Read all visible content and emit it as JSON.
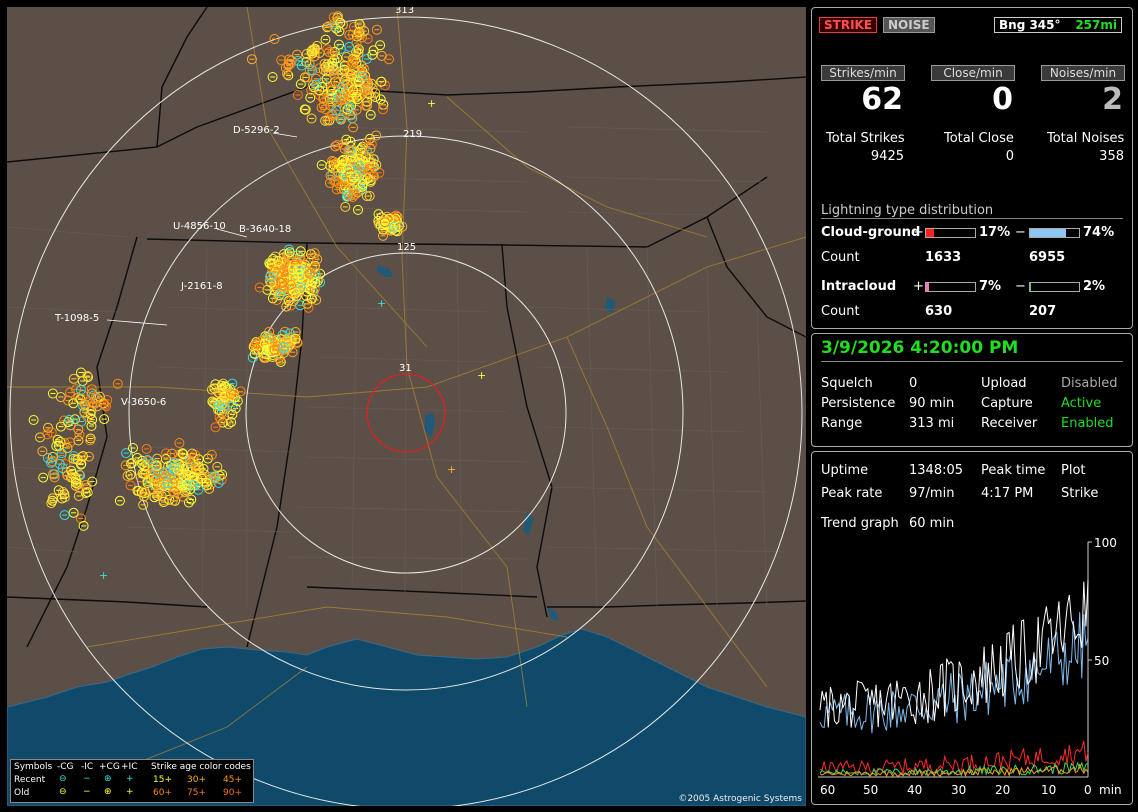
{
  "status": {
    "strike": "STRIKE",
    "noise": "NOISE",
    "bearing": "Bng 345°",
    "distance": "257mi"
  },
  "rates": {
    "strikes_hdr": "Strikes/min",
    "close_hdr": "Close/min",
    "noises_hdr": "Noises/min",
    "strikes": "62",
    "close": "0",
    "noises": "2",
    "total_strikes_lbl": "Total Strikes",
    "total_close_lbl": "Total Close",
    "total_noises_lbl": "Total Noises",
    "total_strikes": "9425",
    "total_close": "0",
    "total_noises": "358"
  },
  "dist": {
    "title": "Lightning type distribution",
    "cg_label": "Cloud-ground",
    "ic_label": "Intracloud",
    "count_label": "Count",
    "plus": "+",
    "minus": "−",
    "cg_pos_pct": "17%",
    "cg_neg_pct": "74%",
    "cg_pos_count": "1633",
    "cg_neg_count": "6955",
    "ic_pos_pct": "7%",
    "ic_neg_pct": "2%",
    "ic_pos_count": "630",
    "ic_neg_count": "207",
    "cg_pos_fill": 0.17,
    "cg_neg_fill": 0.74,
    "ic_pos_fill": 0.07,
    "ic_neg_fill": 0.02
  },
  "datetime": "3/9/2026 4:20:00 PM",
  "settings": {
    "squelch_lbl": "Squelch",
    "squelch": "0",
    "persistence_lbl": "Persistence",
    "persistence": "90 min",
    "range_lbl": "Range",
    "range": "313 mi",
    "upload_lbl": "Upload",
    "upload": "Disabled",
    "capture_lbl": "Capture",
    "capture": "Active",
    "receiver_lbl": "Receiver",
    "receiver": "Enabled"
  },
  "stats": {
    "uptime_lbl": "Uptime",
    "uptime": "1348:05",
    "peak_time_lbl": "Peak time",
    "peak_time": "4:17 PM",
    "peak_rate_lbl": "Peak rate",
    "peak_rate": "97/min",
    "plot_lbl": "Plot",
    "plot": "Strike",
    "trend_lbl": "Trend graph",
    "trend": "60 min"
  },
  "trend": {
    "y_top": "100",
    "y_mid": "50",
    "x_unit": "min",
    "x_ticks": [
      "60",
      "50",
      "40",
      "30",
      "20",
      "10",
      "0"
    ]
  },
  "map": {
    "range_labels": [
      "313",
      "219",
      "125",
      "31"
    ],
    "storm_ids": [
      "D-5296-2",
      "U-4856-10",
      "B-3640-18",
      "J-2161-8",
      "T-1098-5",
      "V-3650-6"
    ],
    "copyright": "©2005 Astrogenic Systems"
  },
  "legend": {
    "symbols": "Symbols",
    "neg_cg": "-CG",
    "neg_ic": "-IC",
    "pos_cg": "+CG",
    "pos_ic": "+IC",
    "age": "Strike age color codes",
    "recent": "Recent",
    "old": "Old",
    "a15": "15+",
    "a30": "30+",
    "a45": "45+",
    "a60": "60+",
    "a75": "75+",
    "a90": "90+"
  },
  "colors": {
    "active": "#22dd22",
    "strike": "#ff4040",
    "cyan": "#33e0e0",
    "yellow": "#ffff33",
    "orange": "#ff9a1a"
  }
}
